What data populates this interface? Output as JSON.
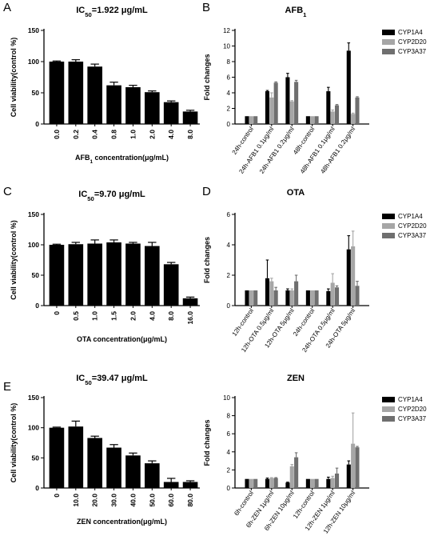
{
  "panel_labels": [
    "A",
    "B",
    "C",
    "D",
    "E",
    ""
  ],
  "chart_data": [
    {
      "type": "bar",
      "title_prefix": "IC",
      "title_sub": "50",
      "title_suffix": "=1.922 μg/mL",
      "categories": [
        "0.0",
        "0.2",
        "0.4",
        "0.8",
        "1.0",
        "2.0",
        "4.0",
        "8.0"
      ],
      "values": [
        100,
        100,
        92,
        62,
        59,
        51,
        35,
        20
      ],
      "errors": [
        1,
        3,
        4,
        5,
        3,
        2,
        2,
        2
      ],
      "xlabel_prefix": "AFB",
      "xlabel_sub": "1",
      "xlabel_suffix": " concentration(μg/mL)",
      "ylabel": "Cell viability(control %)",
      "ylim": [
        0,
        150
      ],
      "yticks": [
        0,
        50,
        100,
        150
      ],
      "color": "#000000"
    },
    {
      "type": "bar",
      "title_prefix": "AFB",
      "title_sub": "1",
      "title_suffix": "",
      "categories": [
        "24h-control",
        "24h-AFB1 0.1μg/ml",
        "24h-AFB1 0.2μg/ml",
        "48h-control",
        "48h-AFB1 0.1μg/ml",
        "48h-AFB1 0.2μg/ml"
      ],
      "series": [
        {
          "name": "CYP1A4",
          "color": "#000000",
          "values": [
            1,
            4.2,
            6.0,
            1,
            4.2,
            9.4
          ],
          "errors": [
            0,
            0.1,
            0.5,
            0,
            0.5,
            1.0
          ]
        },
        {
          "name": "CYP2D20",
          "color": "#a6a6a6",
          "values": [
            1,
            3.4,
            2.9,
            1,
            1.6,
            1.3
          ],
          "errors": [
            0,
            0.6,
            0.1,
            0,
            0.2,
            0.1
          ]
        },
        {
          "name": "CYP3A37",
          "color": "#6f6f6f",
          "values": [
            1,
            5.3,
            5.4,
            1,
            2.4,
            3.4
          ],
          "errors": [
            0,
            0.1,
            0.2,
            0,
            0.1,
            0.1
          ]
        }
      ],
      "ylabel": "Fold changes",
      "ylim": [
        0,
        12
      ],
      "yticks": [
        0,
        2,
        4,
        6,
        8,
        10,
        12
      ]
    },
    {
      "type": "bar",
      "title_prefix": "IC",
      "title_sub": "50",
      "title_suffix": "=9.70 μg/mL",
      "categories": [
        "0",
        "0.5",
        "1.0",
        "1.5",
        "2.0",
        "4.0",
        "8.0",
        "16.0"
      ],
      "values": [
        100,
        101,
        102,
        104,
        102,
        98,
        68,
        12
      ],
      "errors": [
        1,
        3,
        6,
        4,
        2,
        6,
        3,
        2
      ],
      "xlabel_prefix": "OTA concentration(μg/mL)",
      "xlabel_sub": "",
      "xlabel_suffix": "",
      "ylabel": "Cell viability(control %)",
      "ylim": [
        0,
        150
      ],
      "yticks": [
        0,
        50,
        100,
        150
      ],
      "color": "#000000"
    },
    {
      "type": "bar",
      "title_prefix": "OTA",
      "title_sub": "",
      "title_suffix": "",
      "categories": [
        "12h-control",
        "12h-OTA 0.5μg/ml",
        "12h-OTA 5μg/ml",
        "24h-control",
        "24h-OTA 0.5μg/ml",
        "24h-OTA 5μg/ml"
      ],
      "series": [
        {
          "name": "CYP1A4",
          "color": "#000000",
          "values": [
            1,
            1.8,
            1.0,
            1,
            0.95,
            3.7
          ],
          "errors": [
            0,
            1.2,
            0.1,
            0,
            0.15,
            0.9
          ]
        },
        {
          "name": "CYP2D20",
          "color": "#a6a6a6",
          "values": [
            1,
            1.6,
            1.0,
            1,
            1.5,
            3.9
          ],
          "errors": [
            0,
            0.2,
            0.1,
            0,
            0.6,
            1.0
          ]
        },
        {
          "name": "CYP3A37",
          "color": "#6f6f6f",
          "values": [
            1,
            1.0,
            1.6,
            1,
            1.2,
            1.3
          ],
          "errors": [
            0,
            0.2,
            0.4,
            0,
            0.1,
            0.3
          ]
        }
      ],
      "ylabel": "Fold changes",
      "ylim": [
        0,
        6
      ],
      "yticks": [
        0,
        2,
        4,
        6
      ]
    },
    {
      "type": "bar",
      "title_prefix": "IC",
      "title_sub": "50",
      "title_suffix": "=39.47 μg/mL",
      "categories": [
        "0",
        "10.0",
        "20.0",
        "30.0",
        "40.0",
        "50.0",
        "60.0",
        "80.0"
      ],
      "values": [
        100,
        102,
        83,
        67,
        54,
        41,
        10,
        10
      ],
      "errors": [
        1,
        9,
        3,
        5,
        4,
        4,
        6,
        2
      ],
      "xlabel_prefix": "ZEN concentration(μg/mL)",
      "xlabel_sub": "",
      "xlabel_suffix": "",
      "ylabel": "Cell viability(control %)",
      "ylim": [
        0,
        150
      ],
      "yticks": [
        0,
        50,
        100,
        150
      ],
      "color": "#000000"
    },
    {
      "type": "bar",
      "title_prefix": "ZEN",
      "title_sub": "",
      "title_suffix": "",
      "categories": [
        "6h-control",
        "6h-ZEN 1μg/ml",
        "6h-ZEN 10μg/ml",
        "12h-control",
        "12h-ZEN 1μg/ml",
        "12h-ZEN 10μg/ml"
      ],
      "series": [
        {
          "name": "CYP1A4",
          "color": "#000000",
          "values": [
            1,
            1.0,
            0.6,
            1,
            1.0,
            2.6
          ],
          "errors": [
            0,
            0.1,
            0.05,
            0,
            0.2,
            0.4
          ]
        },
        {
          "name": "CYP2D20",
          "color": "#a6a6a6",
          "values": [
            1,
            1.1,
            2.4,
            1,
            1.1,
            4.9
          ],
          "errors": [
            0,
            0.05,
            0.2,
            0,
            0.2,
            3.4
          ]
        },
        {
          "name": "CYP3A37",
          "color": "#6f6f6f",
          "values": [
            1,
            1.1,
            3.4,
            1,
            1.6,
            4.5
          ],
          "errors": [
            0,
            0.05,
            0.5,
            0,
            0.6,
            0.1
          ]
        }
      ],
      "ylabel": "Fold changes",
      "ylim": [
        0,
        10
      ],
      "yticks": [
        0,
        2,
        4,
        6,
        8,
        10
      ]
    }
  ]
}
